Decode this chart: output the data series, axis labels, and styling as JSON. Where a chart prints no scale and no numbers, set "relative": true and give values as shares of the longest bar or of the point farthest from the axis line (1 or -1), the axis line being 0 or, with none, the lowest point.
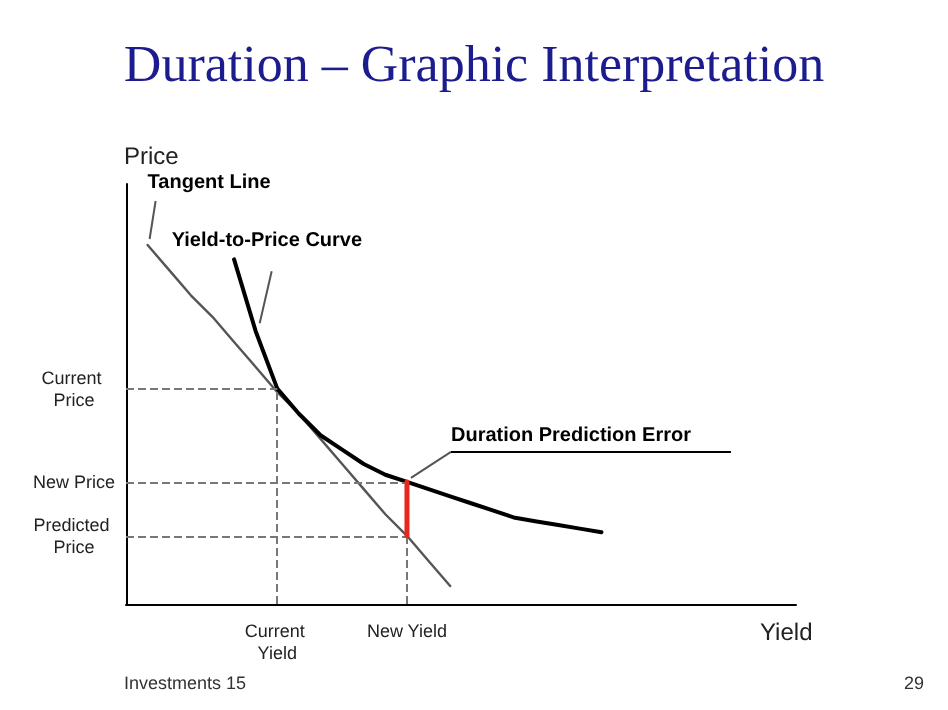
{
  "chart_data": {
    "type": "line",
    "title": "Duration – Graphic Interpretation",
    "xlabel": "Yield",
    "ylabel": "Price",
    "relative": true,
    "categories": [
      null,
      null,
      null,
      null,
      null,
      null,
      null,
      "Current Yield",
      null,
      null,
      null,
      null,
      null,
      "New Yield",
      null,
      null,
      null,
      null,
      null,
      null,
      null,
      null,
      null,
      null,
      null,
      null,
      null,
      null,
      null,
      null,
      null,
      null
    ],
    "series": [
      {
        "name": "Tangent Line",
        "color": "#555555",
        "values": [
          null,
          1,
          0.93,
          0.86,
          0.8,
          0.73,
          0.66,
          0.59,
          0.53,
          0.46,
          0.39,
          0.32,
          0.25,
          0.19,
          0.12,
          0.05,
          null,
          null,
          null,
          null,
          null,
          null,
          null,
          null,
          null,
          null,
          null,
          null,
          null,
          null,
          null,
          null
        ]
      },
      {
        "name": "Yield-to-Price Curve",
        "color": "#000000",
        "values": [
          null,
          null,
          null,
          null,
          null,
          0.96,
          0.76,
          0.6,
          0.53,
          0.47,
          0.43,
          0.39,
          0.36,
          0.34,
          0.32,
          0.3,
          0.28,
          0.26,
          0.24,
          0.23,
          0.22,
          0.21,
          0.2,
          null,
          null,
          null,
          null,
          null,
          null,
          null,
          null,
          null
        ]
      },
      {
        "name": "Duration Prediction Error",
        "color": "#e8261e",
        "x": [
          "New Yield",
          "New Yield"
        ],
        "values": [
          0.19,
          0.34
        ]
      }
    ],
    "ref_lines": [
      {
        "axis": "y",
        "value": 0.6,
        "label": "Current Price",
        "line_style": "dashed"
      },
      {
        "axis": "y",
        "value": 0.34,
        "label": "New Price",
        "line_style": "dashed"
      },
      {
        "axis": "y",
        "value": 0.19,
        "label": "Predicted Price",
        "line_style": "dashed"
      },
      {
        "axis": "x",
        "value": "Current Yield",
        "line_style": "dashed"
      },
      {
        "axis": "x",
        "value": "New Yield",
        "line_style": "dashed"
      }
    ],
    "annotations": [
      "Investments 15",
      "29"
    ]
  }
}
